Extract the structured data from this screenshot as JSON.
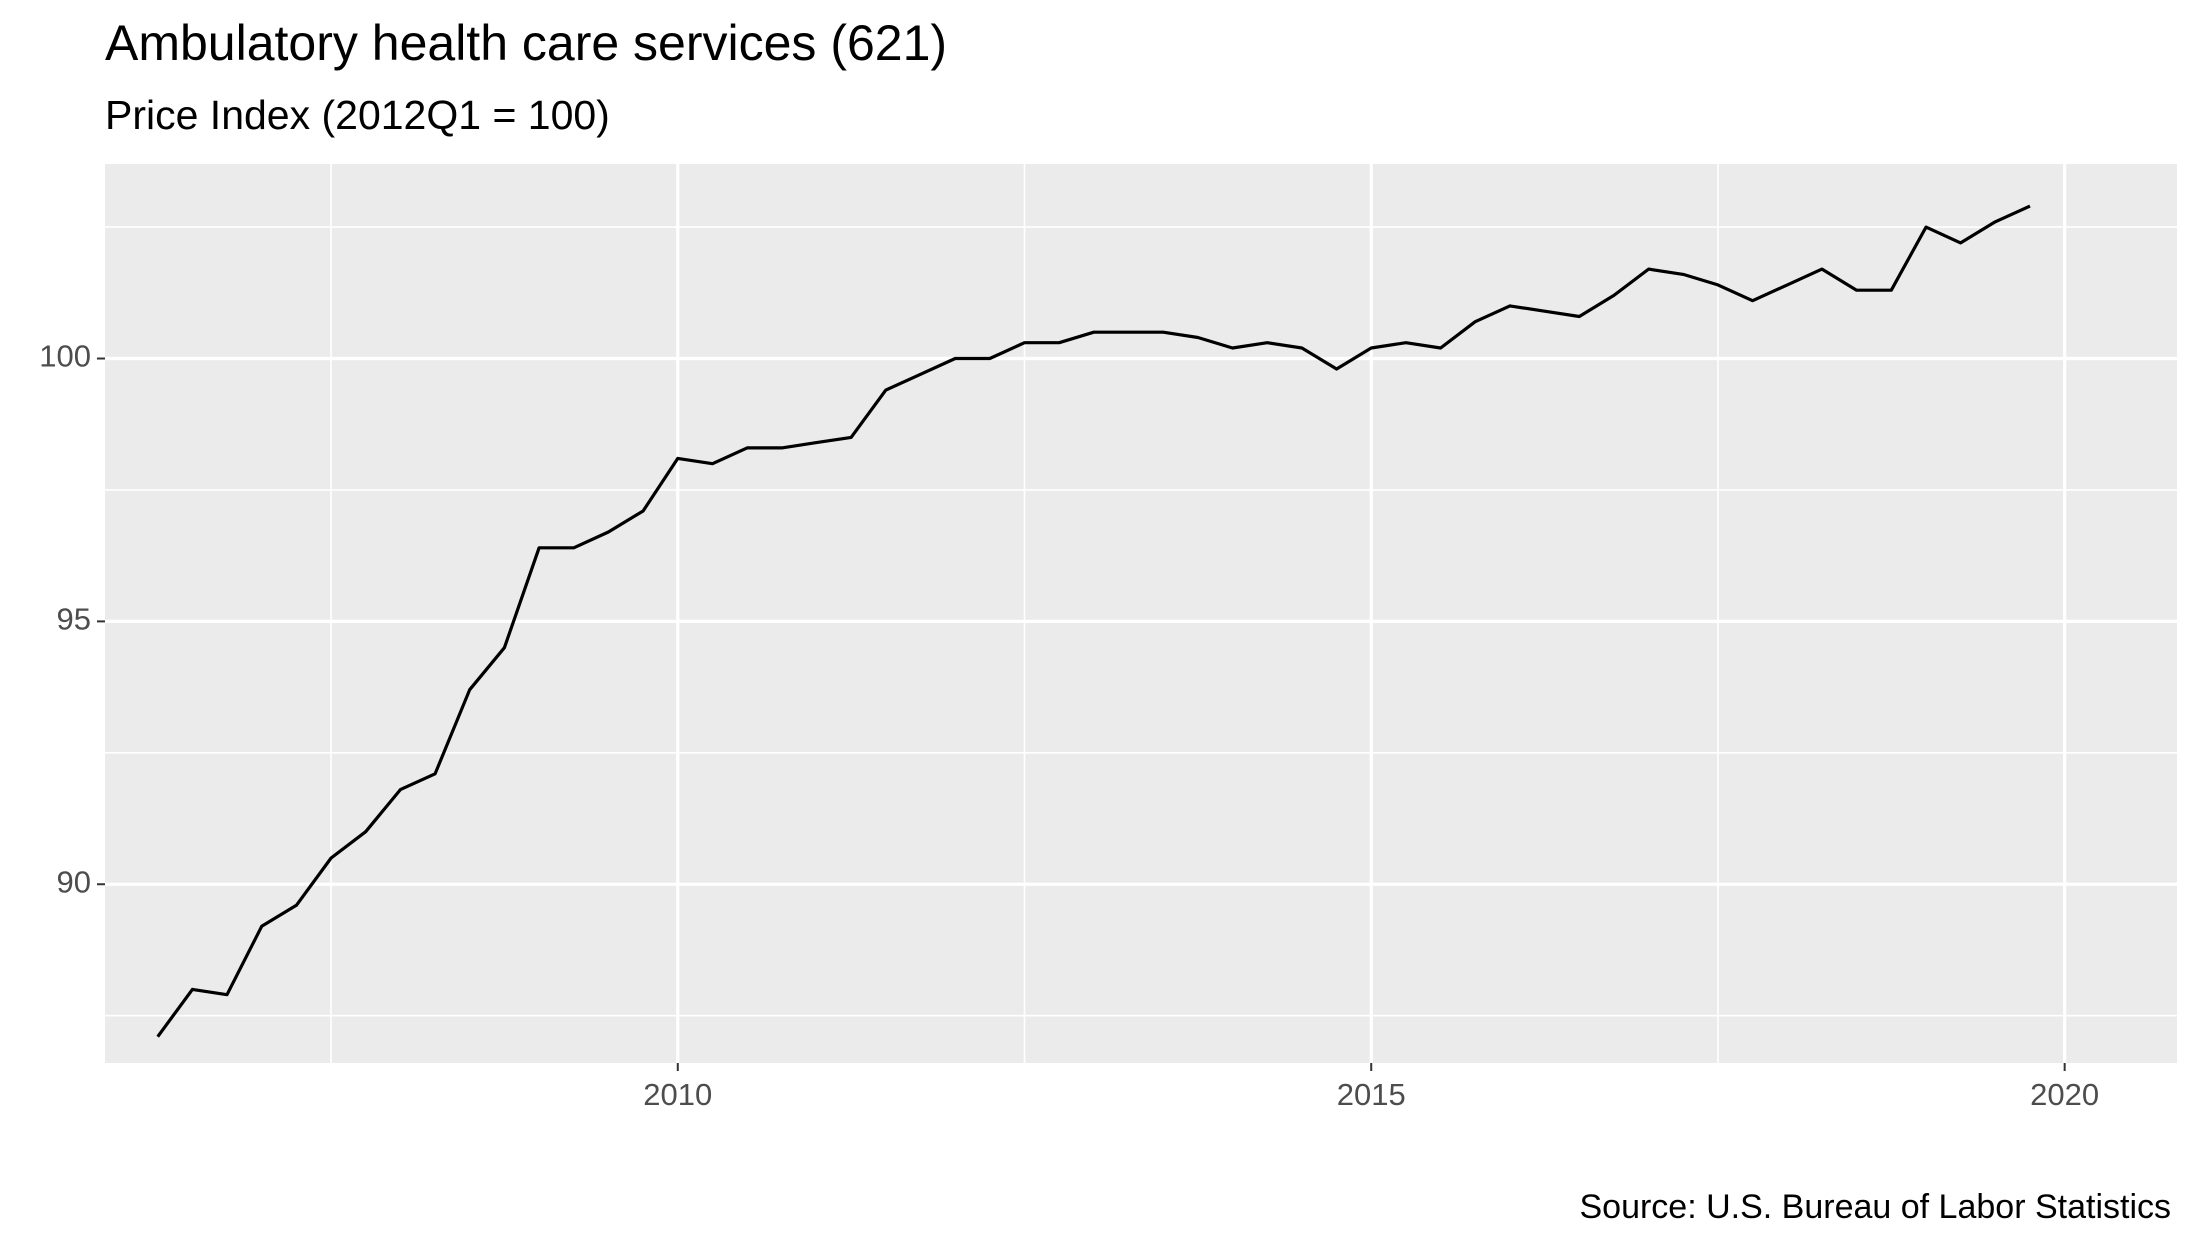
{
  "chart_data": {
    "type": "line",
    "title": "Ambulatory health care services (621)",
    "subtitle": "Price Index (2012Q1 = 100)",
    "caption": "Source: U.S. Bureau of Labor Statistics",
    "xlabel": "",
    "ylabel": "",
    "xlim": [
      2005.87,
      2020.81
    ],
    "ylim": [
      86.6,
      103.7
    ],
    "x_ticks": [
      2010,
      2015,
      2020
    ],
    "y_ticks": [
      90,
      95,
      100
    ],
    "x_tick_labels": [
      "2010",
      "2015",
      "2020"
    ],
    "y_tick_labels": [
      "90",
      "95",
      "100"
    ],
    "grid": true,
    "legend": "none",
    "colors": {
      "panel": "#ebebeb",
      "grid": "#ffffff",
      "line": "#000000"
    },
    "series": [
      {
        "x": [
          2006.25,
          2006.5,
          2006.75,
          2007.0,
          2007.25,
          2007.5,
          2007.75,
          2008.0,
          2008.25,
          2008.5,
          2008.75,
          2009.0,
          2009.25,
          2009.5,
          2009.75,
          2010.0,
          2010.25,
          2010.5,
          2010.75,
          2011.0,
          2011.25,
          2011.5,
          2011.75,
          2012.0,
          2012.25,
          2012.5,
          2012.75,
          2013.0,
          2013.25,
          2013.5,
          2013.75,
          2014.0,
          2014.25,
          2014.5,
          2014.75,
          2015.0,
          2015.25,
          2015.5,
          2015.75,
          2016.0,
          2016.25,
          2016.5,
          2016.75,
          2017.0,
          2017.25,
          2017.5,
          2017.75,
          2018.0,
          2018.25,
          2018.5,
          2018.75,
          2019.0,
          2019.25,
          2019.5,
          2019.75
        ],
        "values": [
          87.1,
          88.0,
          87.9,
          89.2,
          89.6,
          90.5,
          91.0,
          91.8,
          92.1,
          93.7,
          94.5,
          96.4,
          96.4,
          96.7,
          97.1,
          98.1,
          98.0,
          98.3,
          98.3,
          98.4,
          98.5,
          99.4,
          99.7,
          100.0,
          100.0,
          100.3,
          100.3,
          100.5,
          100.5,
          100.5,
          100.4,
          100.2,
          100.3,
          100.2,
          99.8,
          100.2,
          100.3,
          100.2,
          100.7,
          101.0,
          100.9,
          100.8,
          101.2,
          101.7,
          101.6,
          101.4,
          101.1,
          101.4,
          101.7,
          101.3,
          101.3,
          102.5,
          102.2,
          102.6,
          102.9
        ]
      }
    ]
  }
}
